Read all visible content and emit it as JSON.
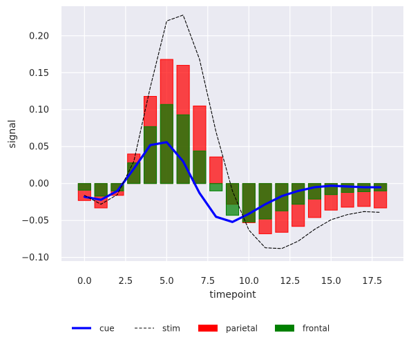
{
  "chart_data": {
    "type": "bar",
    "title": "",
    "xlabel": "timepoint",
    "ylabel": "signal",
    "xlim": [
      -1.4,
      19.4
    ],
    "ylim": [
      -0.105,
      0.24
    ],
    "xticks": [
      0.0,
      2.5,
      5.0,
      7.5,
      10.0,
      12.5,
      15.0,
      17.5
    ],
    "xtick_labels": [
      "0.0",
      "2.5",
      "5.0",
      "7.5",
      "10.0",
      "12.5",
      "15.0",
      "17.5"
    ],
    "yticks": [
      -0.1,
      -0.05,
      0.0,
      0.05,
      0.1,
      0.15,
      0.2
    ],
    "ytick_labels": [
      "−0.10",
      "−0.05",
      "0.00",
      "0.05",
      "0.10",
      "0.15",
      "0.20"
    ],
    "grid": true,
    "legend_position": "bottom",
    "x": [
      0,
      1,
      2,
      3,
      4,
      5,
      6,
      7,
      8,
      9,
      10,
      11,
      12,
      13,
      14,
      15,
      16,
      17,
      18
    ],
    "series": [
      {
        "name": "cue",
        "kind": "line",
        "color": "#0000ff",
        "values": [
          -0.018,
          -0.022,
          -0.01,
          0.02,
          0.052,
          0.056,
          0.03,
          -0.013,
          -0.045,
          -0.052,
          -0.041,
          -0.028,
          -0.017,
          -0.01,
          -0.005,
          -0.003,
          -0.004,
          -0.005,
          -0.005
        ]
      },
      {
        "name": "stim",
        "kind": "line-dashed",
        "color": "#000000",
        "values": [
          -0.016,
          -0.028,
          -0.015,
          0.03,
          0.13,
          0.22,
          0.228,
          0.168,
          0.07,
          -0.01,
          -0.063,
          -0.087,
          -0.088,
          -0.078,
          -0.062,
          -0.049,
          -0.042,
          -0.038,
          -0.039
        ]
      },
      {
        "name": "parietal",
        "kind": "bar",
        "color": "#ff0000",
        "values": [
          -0.023,
          -0.033,
          -0.016,
          0.04,
          0.118,
          0.168,
          0.16,
          0.105,
          0.036,
          -0.028,
          -0.053,
          -0.068,
          -0.066,
          -0.058,
          -0.046,
          -0.036,
          -0.032,
          -0.031,
          -0.033
        ]
      },
      {
        "name": "frontal",
        "kind": "bar",
        "color": "#008000",
        "values": [
          -0.009,
          -0.017,
          -0.01,
          0.028,
          0.077,
          0.107,
          0.093,
          0.044,
          -0.01,
          -0.043,
          -0.052,
          -0.048,
          -0.037,
          -0.028,
          -0.021,
          -0.015,
          -0.012,
          -0.011,
          -0.01
        ]
      }
    ]
  }
}
